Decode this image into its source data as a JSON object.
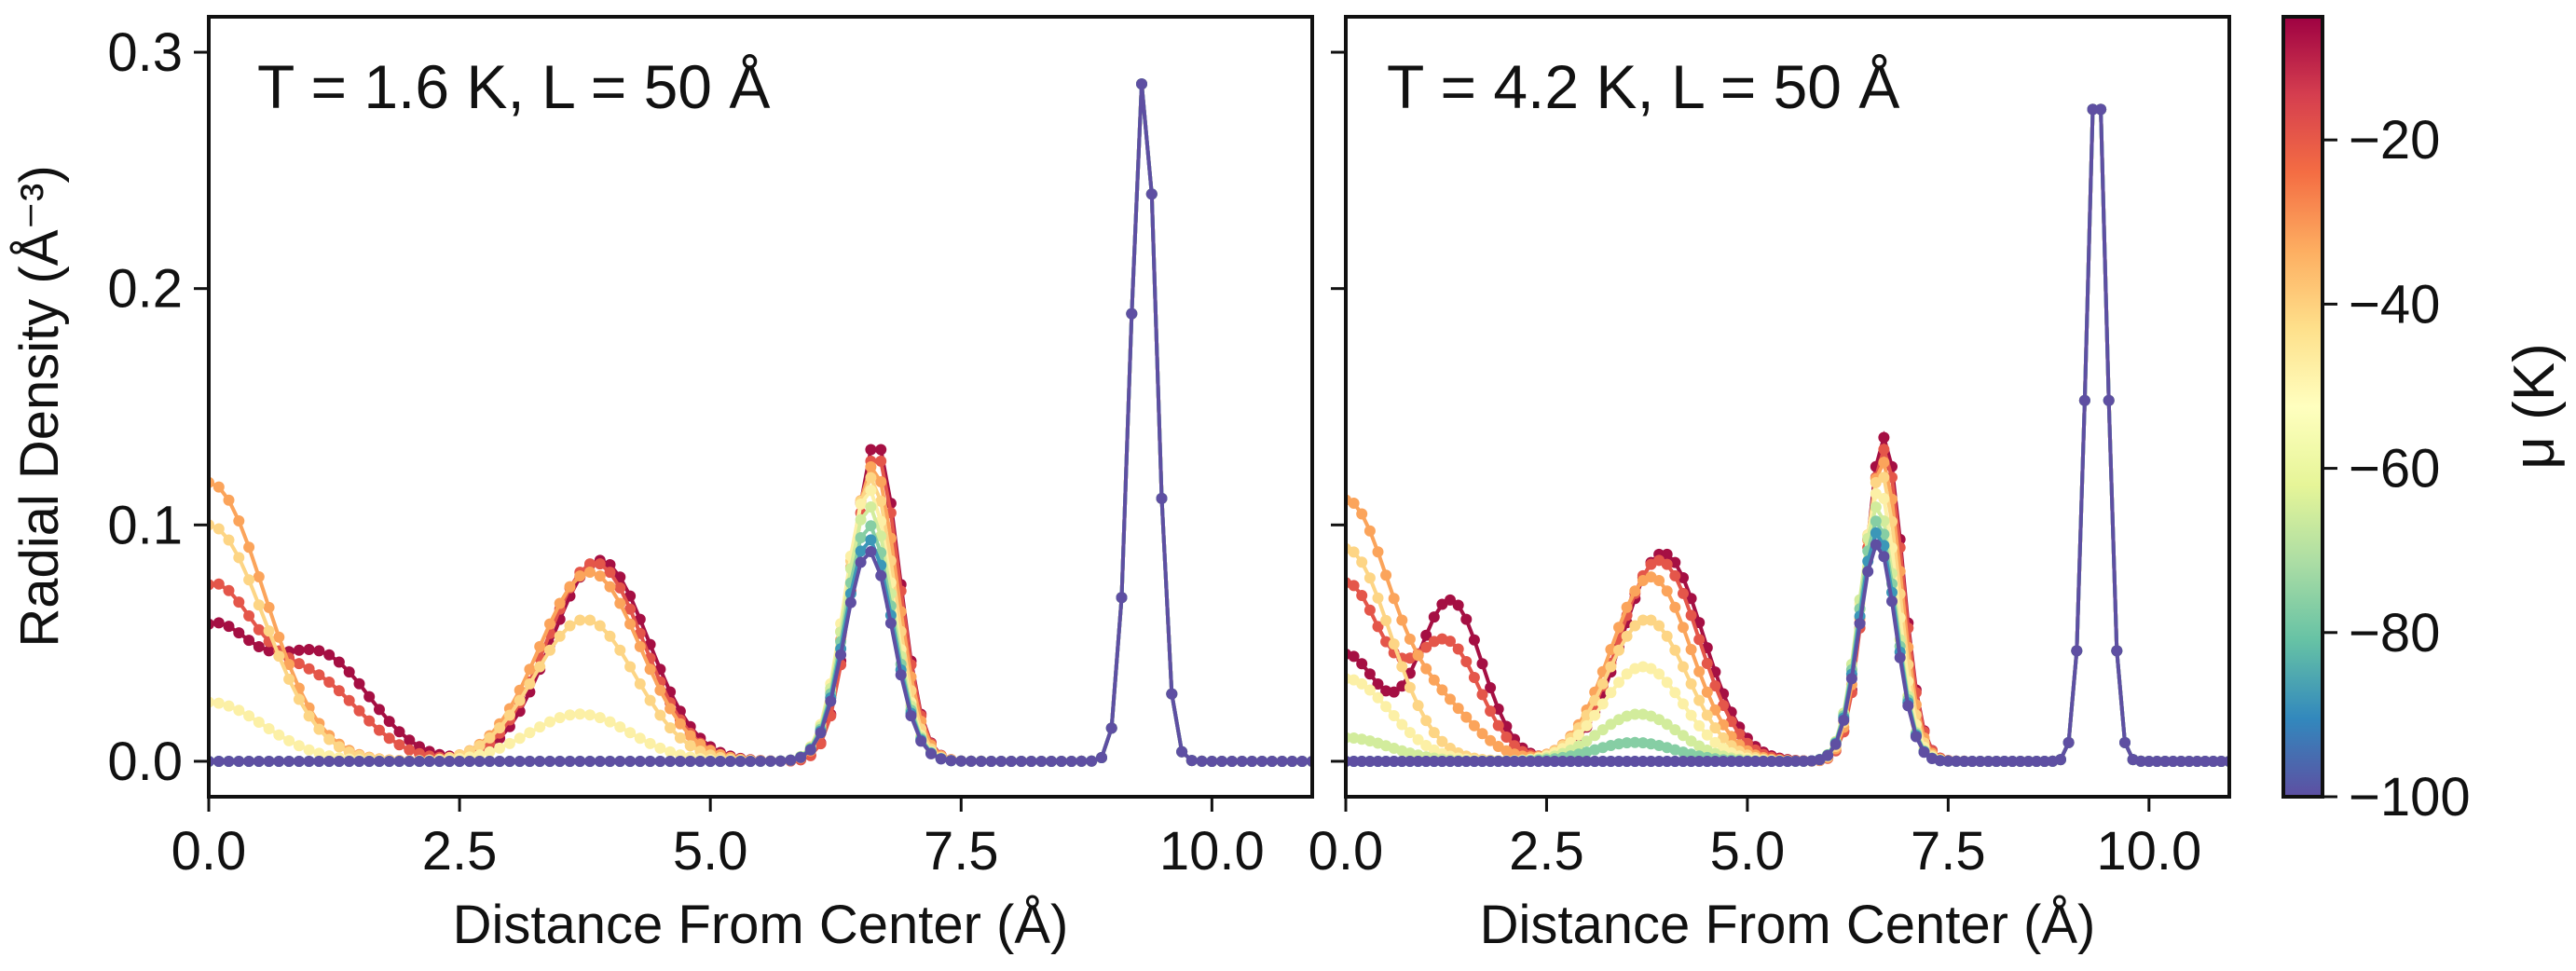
{
  "chart_data": [
    {
      "type": "line",
      "title": "T = 1.6 K, L = 50 Å",
      "xlabel": "Distance From Center (Å)",
      "ylabel": "Radial Density (Å⁻³)",
      "xlim": [
        0.0,
        11.0
      ],
      "ylim": [
        -0.015,
        0.315
      ],
      "x_ticks": [
        "0.0",
        "2.5",
        "5.0",
        "7.5",
        "10.0"
      ],
      "y_ticks": [
        "0.0",
        "0.1",
        "0.2",
        "0.3"
      ],
      "grid": false,
      "colored_by": "μ (K)",
      "series": [
        {
          "mu": -10,
          "color": "#a50f43",
          "peaks": [
            {
              "center": 0.0,
              "height": 0.054,
              "width": 0.42
            },
            {
              "center": 1.1,
              "height": 0.045,
              "width": 0.5
            },
            {
              "center": 3.9,
              "height": 0.085,
              "width": 0.48
            },
            {
              "center": 6.65,
              "height": 0.135,
              "width": 0.23
            },
            {
              "center": 9.32,
              "height": 0.29,
              "width": 0.13
            }
          ]
        },
        {
          "mu": -20,
          "color": "#e4564a",
          "peaks": [
            {
              "center": 0.0,
              "height": 0.07,
              "width": 0.42
            },
            {
              "center": 1.0,
              "height": 0.035,
              "width": 0.5
            },
            {
              "center": 3.85,
              "height": 0.084,
              "width": 0.48
            },
            {
              "center": 6.65,
              "height": 0.13,
              "width": 0.23
            },
            {
              "center": 9.32,
              "height": 0.29,
              "width": 0.13
            }
          ]
        },
        {
          "mu": -35,
          "color": "#fba45b",
          "peaks": [
            {
              "center": 0.0,
              "height": 0.118,
              "width": 0.55
            },
            {
              "center": 3.8,
              "height": 0.08,
              "width": 0.5
            },
            {
              "center": 6.62,
              "height": 0.125,
              "width": 0.24
            },
            {
              "center": 9.32,
              "height": 0.29,
              "width": 0.13
            }
          ]
        },
        {
          "mu": -45,
          "color": "#fdd585",
          "peaks": [
            {
              "center": 0.0,
              "height": 0.1,
              "width": 0.55
            },
            {
              "center": 3.75,
              "height": 0.06,
              "width": 0.5
            },
            {
              "center": 6.6,
              "height": 0.12,
              "width": 0.24
            },
            {
              "center": 9.32,
              "height": 0.29,
              "width": 0.13
            }
          ]
        },
        {
          "mu": -55,
          "color": "#fcf0a6",
          "peaks": [
            {
              "center": 0.0,
              "height": 0.025,
              "width": 0.55
            },
            {
              "center": 3.7,
              "height": 0.02,
              "width": 0.5
            },
            {
              "center": 6.58,
              "height": 0.115,
              "width": 0.24
            },
            {
              "center": 9.32,
              "height": 0.29,
              "width": 0.13
            }
          ]
        },
        {
          "mu": -65,
          "color": "#d2ec9c",
          "peaks": [
            {
              "center": 6.58,
              "height": 0.108,
              "width": 0.24
            },
            {
              "center": 9.32,
              "height": 0.29,
              "width": 0.13
            }
          ]
        },
        {
          "mu": -75,
          "color": "#86cea4",
          "peaks": [
            {
              "center": 6.58,
              "height": 0.1,
              "width": 0.24
            },
            {
              "center": 9.32,
              "height": 0.29,
              "width": 0.13
            }
          ]
        },
        {
          "mu": -85,
          "color": "#3c97b8",
          "peaks": [
            {
              "center": 6.58,
              "height": 0.094,
              "width": 0.24
            },
            {
              "center": 9.32,
              "height": 0.29,
              "width": 0.13
            }
          ]
        },
        {
          "mu": -100,
          "color": "#5e4fa2",
          "peaks": [
            {
              "center": 6.58,
              "height": 0.089,
              "width": 0.24
            },
            {
              "center": 9.32,
              "height": 0.29,
              "width": 0.13
            }
          ]
        }
      ]
    },
    {
      "type": "line",
      "title": "T = 4.2 K, L = 50 Å",
      "xlabel": "Distance From Center (Å)",
      "ylabel": "",
      "xlim": [
        0.0,
        11.0
      ],
      "ylim": [
        -0.015,
        0.315
      ],
      "x_ticks": [
        "0.0",
        "2.5",
        "5.0",
        "7.5",
        "10.0"
      ],
      "y_ticks": [],
      "grid": false,
      "colored_by": "μ (K)",
      "series": [
        {
          "mu": -10,
          "color": "#a50f43",
          "peaks": [
            {
              "center": 0.0,
              "height": 0.045,
              "width": 0.4
            },
            {
              "center": 1.3,
              "height": 0.068,
              "width": 0.4
            },
            {
              "center": 3.95,
              "height": 0.088,
              "width": 0.5
            },
            {
              "center": 6.7,
              "height": 0.137,
              "width": 0.23
            },
            {
              "center": 9.35,
              "height": 0.297,
              "width": 0.13
            }
          ]
        },
        {
          "mu": -20,
          "color": "#e4564a",
          "peaks": [
            {
              "center": 0.0,
              "height": 0.075,
              "width": 0.45
            },
            {
              "center": 1.25,
              "height": 0.05,
              "width": 0.42
            },
            {
              "center": 3.9,
              "height": 0.085,
              "width": 0.5
            },
            {
              "center": 6.7,
              "height": 0.132,
              "width": 0.23
            },
            {
              "center": 9.35,
              "height": 0.297,
              "width": 0.13
            }
          ]
        },
        {
          "mu": -35,
          "color": "#fba45b",
          "peaks": [
            {
              "center": 0.0,
              "height": 0.11,
              "width": 0.55
            },
            {
              "center": 1.2,
              "height": 0.02,
              "width": 0.45
            },
            {
              "center": 3.8,
              "height": 0.078,
              "width": 0.5
            },
            {
              "center": 6.68,
              "height": 0.127,
              "width": 0.23
            },
            {
              "center": 9.35,
              "height": 0.297,
              "width": 0.13
            }
          ]
        },
        {
          "mu": -45,
          "color": "#fdd585",
          "peaks": [
            {
              "center": 0.0,
              "height": 0.09,
              "width": 0.55
            },
            {
              "center": 3.75,
              "height": 0.06,
              "width": 0.5
            },
            {
              "center": 6.66,
              "height": 0.122,
              "width": 0.23
            },
            {
              "center": 9.35,
              "height": 0.297,
              "width": 0.13
            }
          ]
        },
        {
          "mu": -55,
          "color": "#fcf0a6",
          "peaks": [
            {
              "center": 0.0,
              "height": 0.035,
              "width": 0.55
            },
            {
              "center": 3.7,
              "height": 0.04,
              "width": 0.5
            },
            {
              "center": 6.64,
              "height": 0.115,
              "width": 0.23
            },
            {
              "center": 9.35,
              "height": 0.297,
              "width": 0.13
            }
          ]
        },
        {
          "mu": -65,
          "color": "#d2ec9c",
          "peaks": [
            {
              "center": 0.0,
              "height": 0.01,
              "width": 0.55
            },
            {
              "center": 3.65,
              "height": 0.02,
              "width": 0.5
            },
            {
              "center": 6.62,
              "height": 0.108,
              "width": 0.23
            },
            {
              "center": 9.35,
              "height": 0.297,
              "width": 0.13
            }
          ]
        },
        {
          "mu": -75,
          "color": "#86cea4",
          "peaks": [
            {
              "center": 3.6,
              "height": 0.008,
              "width": 0.5
            },
            {
              "center": 6.62,
              "height": 0.102,
              "width": 0.23
            },
            {
              "center": 9.35,
              "height": 0.297,
              "width": 0.13
            }
          ]
        },
        {
          "mu": -85,
          "color": "#3c97b8",
          "peaks": [
            {
              "center": 6.62,
              "height": 0.097,
              "width": 0.23
            },
            {
              "center": 9.35,
              "height": 0.297,
              "width": 0.13
            }
          ]
        },
        {
          "mu": -100,
          "color": "#5e4fa2",
          "peaks": [
            {
              "center": 6.62,
              "height": 0.092,
              "width": 0.23
            },
            {
              "center": 9.35,
              "height": 0.297,
              "width": 0.13
            }
          ]
        }
      ]
    }
  ],
  "colorbar": {
    "label": "μ (K)",
    "range": [
      -100,
      -5
    ],
    "ticks": [
      "−20",
      "−40",
      "−60",
      "−80",
      "−100"
    ],
    "tick_values": [
      -20,
      -40,
      -60,
      -80,
      -100
    ],
    "colormap": "Spectral",
    "stops": [
      "#5e4fa2",
      "#3288bd",
      "#66c2a5",
      "#abdda4",
      "#e6f598",
      "#ffffbf",
      "#fee08b",
      "#fdae61",
      "#f46d43",
      "#d53e4f",
      "#9e0142"
    ]
  }
}
